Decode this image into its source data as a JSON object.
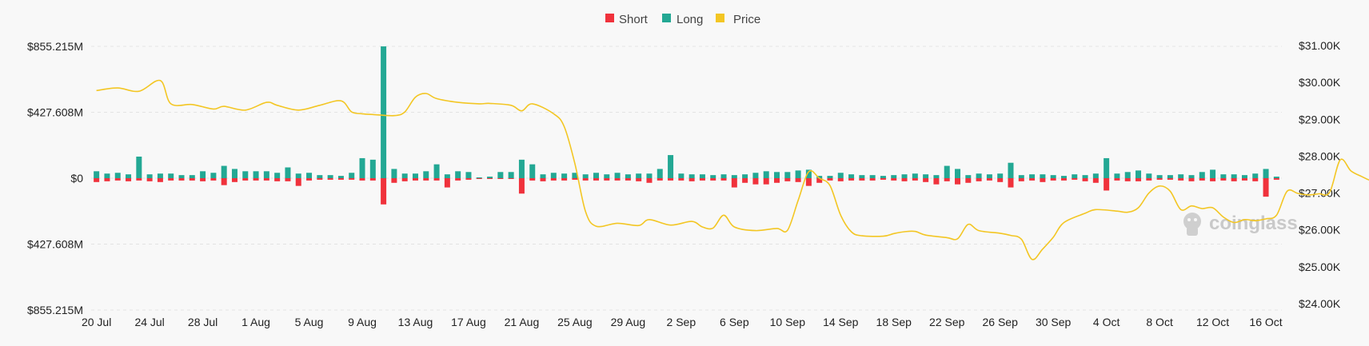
{
  "legend": [
    {
      "label": "Short",
      "color": "#f0323c"
    },
    {
      "label": "Long",
      "color": "#23a894"
    },
    {
      "label": "Price",
      "color": "#f3c623"
    }
  ],
  "watermark": "coinglass",
  "chart_data": {
    "type": "bar",
    "left_axis": {
      "ticks": [
        "$855.215M",
        "$427.608M",
        "$0",
        "$427.608M",
        "$855.215M"
      ],
      "range": [
        -855.215,
        855.215
      ],
      "unit": "M"
    },
    "right_axis": {
      "ticks": [
        "$31.00K",
        "$30.00K",
        "$29.00K",
        "$28.00K",
        "$27.00K",
        "$26.00K",
        "$25.00K",
        "$24.00K"
      ],
      "range": [
        24000,
        31000
      ]
    },
    "x_labels": [
      "20 Jul",
      "24 Jul",
      "28 Jul",
      "1 Aug",
      "5 Aug",
      "9 Aug",
      "13 Aug",
      "17 Aug",
      "21 Aug",
      "25 Aug",
      "29 Aug",
      "2 Sep",
      "6 Sep",
      "10 Sep",
      "14 Sep",
      "18 Sep",
      "22 Sep",
      "26 Sep",
      "30 Sep",
      "4 Oct",
      "8 Oct",
      "12 Oct",
      "16 Oct"
    ],
    "grid": true,
    "legend_position": "top-center",
    "series": [
      {
        "name": "Long",
        "color": "#23a894",
        "values": [
          45,
          30,
          35,
          25,
          140,
          25,
          30,
          30,
          20,
          20,
          45,
          35,
          80,
          60,
          45,
          45,
          45,
          35,
          70,
          30,
          35,
          20,
          20,
          15,
          35,
          130,
          120,
          855,
          60,
          30,
          30,
          45,
          90,
          25,
          45,
          40,
          5,
          10,
          40,
          40,
          120,
          90,
          25,
          35,
          30,
          35,
          25,
          35,
          25,
          35,
          25,
          30,
          30,
          60,
          150,
          30,
          25,
          25,
          20,
          25,
          20,
          25,
          35,
          45,
          40,
          40,
          50,
          55,
          15,
          15,
          35,
          25,
          20,
          20,
          15,
          20,
          25,
          30,
          25,
          20,
          80,
          60,
          20,
          30,
          25,
          30,
          100,
          20,
          25,
          25,
          20,
          15,
          25,
          20,
          30,
          130,
          30,
          40,
          50,
          30,
          20,
          20,
          25,
          20,
          40,
          55,
          25,
          25,
          20,
          30,
          60,
          10
        ]
      },
      {
        "name": "Short",
        "color": "#f0323c",
        "values": [
          25,
          20,
          15,
          20,
          15,
          20,
          25,
          15,
          15,
          15,
          20,
          15,
          45,
          25,
          15,
          15,
          15,
          20,
          20,
          50,
          15,
          10,
          10,
          10,
          10,
          15,
          15,
          170,
          30,
          20,
          15,
          15,
          15,
          60,
          15,
          10,
          5,
          5,
          5,
          5,
          100,
          15,
          20,
          15,
          15,
          10,
          15,
          15,
          15,
          15,
          15,
          20,
          30,
          15,
          15,
          15,
          20,
          15,
          15,
          15,
          60,
          30,
          40,
          40,
          30,
          20,
          25,
          50,
          30,
          15,
          20,
          15,
          15,
          15,
          10,
          15,
          20,
          15,
          25,
          40,
          20,
          40,
          30,
          20,
          15,
          25,
          60,
          20,
          15,
          25,
          15,
          15,
          10,
          20,
          30,
          80,
          15,
          20,
          20,
          15,
          10,
          10,
          15,
          20,
          15,
          20,
          15,
          20,
          15,
          20,
          120,
          10
        ]
      }
    ],
    "price": [
      [
        0,
        29780
      ],
      [
        2,
        29850
      ],
      [
        4,
        29760
      ],
      [
        6,
        30050
      ],
      [
        7,
        29420
      ],
      [
        9,
        29400
      ],
      [
        11,
        29280
      ],
      [
        12,
        29350
      ],
      [
        14,
        29250
      ],
      [
        16,
        29460
      ],
      [
        17,
        29380
      ],
      [
        19,
        29250
      ],
      [
        21,
        29380
      ],
      [
        23,
        29500
      ],
      [
        24,
        29200
      ],
      [
        25,
        29150
      ],
      [
        26,
        29130
      ],
      [
        28,
        29100
      ],
      [
        29,
        29200
      ],
      [
        30,
        29600
      ],
      [
        31,
        29700
      ],
      [
        32,
        29560
      ],
      [
        34,
        29460
      ],
      [
        36,
        29420
      ],
      [
        37,
        29430
      ],
      [
        39,
        29380
      ],
      [
        40,
        29230
      ],
      [
        41,
        29420
      ],
      [
        43,
        29150
      ],
      [
        44,
        28800
      ],
      [
        45,
        27800
      ],
      [
        46,
        26500
      ],
      [
        47,
        26100
      ],
      [
        49,
        26180
      ],
      [
        51,
        26120
      ],
      [
        52,
        26280
      ],
      [
        54,
        26130
      ],
      [
        56,
        26230
      ],
      [
        57,
        26080
      ],
      [
        58,
        26050
      ],
      [
        59,
        26400
      ],
      [
        60,
        26080
      ],
      [
        62,
        25980
      ],
      [
        64,
        26040
      ],
      [
        65,
        25990
      ],
      [
        66,
        26800
      ],
      [
        67,
        27580
      ],
      [
        68,
        27400
      ],
      [
        69,
        27200
      ],
      [
        70,
        26400
      ],
      [
        71,
        25950
      ],
      [
        72,
        25840
      ],
      [
        74,
        25830
      ],
      [
        75,
        25900
      ],
      [
        76,
        25950
      ],
      [
        77,
        25960
      ],
      [
        78,
        25860
      ],
      [
        80,
        25790
      ],
      [
        81,
        25760
      ],
      [
        82,
        26150
      ],
      [
        83,
        25980
      ],
      [
        85,
        25910
      ],
      [
        86,
        25850
      ],
      [
        87,
        25750
      ],
      [
        88,
        25200
      ],
      [
        89,
        25480
      ],
      [
        90,
        25800
      ],
      [
        91,
        26200
      ],
      [
        93,
        26450
      ],
      [
        94,
        26550
      ],
      [
        96,
        26510
      ],
      [
        97,
        26480
      ],
      [
        98,
        26600
      ],
      [
        99,
        27000
      ],
      [
        100,
        27190
      ],
      [
        101,
        27050
      ],
      [
        102,
        26550
      ],
      [
        103,
        26650
      ],
      [
        104,
        26580
      ],
      [
        105,
        26600
      ],
      [
        106,
        26350
      ],
      [
        107,
        26200
      ],
      [
        108,
        26280
      ],
      [
        109,
        26250
      ],
      [
        110,
        26300
      ],
      [
        111,
        26400
      ],
      [
        112,
        27050
      ],
      [
        113,
        26990
      ],
      [
        114,
        26950
      ],
      [
        115,
        26980
      ],
      [
        116,
        27020
      ],
      [
        117,
        27900
      ],
      [
        118,
        27600
      ],
      [
        119,
        27450
      ],
      [
        120,
        27340
      ],
      [
        121,
        27480
      ],
      [
        122,
        27750
      ],
      [
        123,
        27450
      ],
      [
        124,
        27720
      ],
      [
        125,
        27850
      ],
      [
        126,
        27880
      ],
      [
        127,
        27850
      ],
      [
        128,
        27820
      ],
      [
        129,
        27650
      ],
      [
        130,
        27400
      ],
      [
        131,
        27000
      ],
      [
        132,
        26780
      ],
      [
        133,
        26800
      ],
      [
        134,
        26880
      ],
      [
        135,
        26850
      ],
      [
        136,
        26900
      ],
      [
        137,
        27150
      ],
      [
        138,
        28350
      ],
      [
        139,
        28200
      ],
      [
        140,
        28400
      ]
    ]
  }
}
